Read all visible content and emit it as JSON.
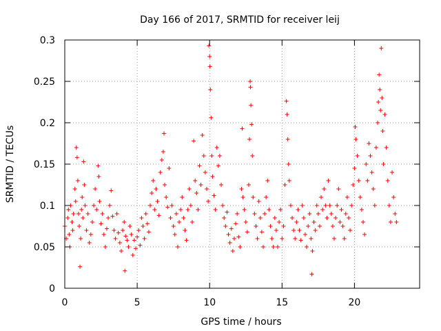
{
  "chart_data": {
    "type": "scatter",
    "title": "Day 166 of 2017, SRMTID for receiver leij",
    "xlabel": "GPS time / hours",
    "ylabel": "SRMTID / TECUs",
    "xlim": [
      0,
      24.5
    ],
    "ylim": [
      0,
      0.3
    ],
    "xticks": [
      0,
      5,
      10,
      15,
      20
    ],
    "xtick_labels": [
      "0",
      "5",
      "10",
      "15",
      "20"
    ],
    "yticks": [
      0,
      0.05,
      0.1,
      0.15,
      0.2,
      0.25,
      0.3
    ],
    "ytick_labels": [
      "0",
      "0.05",
      "0.1",
      "0.15",
      "0.2",
      "0.25",
      "0.3"
    ],
    "grid": true,
    "marker": "+",
    "color": "#ff0000",
    "series": [
      {
        "name": "SRMTID",
        "points": [
          [
            0.0,
            0.075
          ],
          [
            0.1,
            0.06
          ],
          [
            0.2,
            0.085
          ],
          [
            0.25,
            0.095
          ],
          [
            0.3,
            0.065
          ],
          [
            0.35,
            0.05
          ],
          [
            0.4,
            0.1
          ],
          [
            0.5,
            0.08
          ],
          [
            0.55,
            0.07
          ],
          [
            0.6,
            0.09
          ],
          [
            0.7,
            0.12
          ],
          [
            0.75,
            0.105
          ],
          [
            0.8,
            0.17
          ],
          [
            0.85,
            0.158
          ],
          [
            0.9,
            0.13
          ],
          [
            0.95,
            0.09
          ],
          [
            1.0,
            0.075
          ],
          [
            1.05,
            0.026
          ],
          [
            1.1,
            0.06
          ],
          [
            1.15,
            0.095
          ],
          [
            1.2,
            0.11
          ],
          [
            1.25,
            0.085
          ],
          [
            1.3,
            0.153
          ],
          [
            1.35,
            0.125
          ],
          [
            1.4,
            0.1
          ],
          [
            1.5,
            0.07
          ],
          [
            1.6,
            0.09
          ],
          [
            1.7,
            0.055
          ],
          [
            1.8,
            0.065
          ],
          [
            1.9,
            0.08
          ],
          [
            2.0,
            0.1
          ],
          [
            2.1,
            0.12
          ],
          [
            2.2,
            0.095
          ],
          [
            2.3,
            0.148
          ],
          [
            2.35,
            0.135
          ],
          [
            2.4,
            0.105
          ],
          [
            2.5,
            0.078
          ],
          [
            2.6,
            0.09
          ],
          [
            2.7,
            0.065
          ],
          [
            2.8,
            0.05
          ],
          [
            2.9,
            0.072
          ],
          [
            3.0,
            0.085
          ],
          [
            3.1,
            0.1
          ],
          [
            3.2,
            0.118
          ],
          [
            3.3,
            0.087
          ],
          [
            3.4,
            0.07
          ],
          [
            3.5,
            0.06
          ],
          [
            3.6,
            0.09
          ],
          [
            3.7,
            0.067
          ],
          [
            3.8,
            0.055
          ],
          [
            3.9,
            0.045
          ],
          [
            4.0,
            0.07
          ],
          [
            4.1,
            0.08
          ],
          [
            4.15,
            0.021
          ],
          [
            4.2,
            0.063
          ],
          [
            4.3,
            0.058
          ],
          [
            4.4,
            0.05
          ],
          [
            4.5,
            0.075
          ],
          [
            4.6,
            0.065
          ],
          [
            4.7,
            0.04
          ],
          [
            4.8,
            0.058
          ],
          [
            4.9,
            0.048
          ],
          [
            5.0,
            0.062
          ],
          [
            5.1,
            0.07
          ],
          [
            5.2,
            0.052
          ],
          [
            5.3,
            0.085
          ],
          [
            5.4,
            0.075
          ],
          [
            5.5,
            0.06
          ],
          [
            5.6,
            0.09
          ],
          [
            5.7,
            0.078
          ],
          [
            5.8,
            0.068
          ],
          [
            5.9,
            0.1
          ],
          [
            6.0,
            0.115
          ],
          [
            6.1,
            0.13
          ],
          [
            6.2,
            0.095
          ],
          [
            6.3,
            0.12
          ],
          [
            6.4,
            0.105
          ],
          [
            6.5,
            0.088
          ],
          [
            6.6,
            0.14
          ],
          [
            6.7,
            0.155
          ],
          [
            6.8,
            0.165
          ],
          [
            6.85,
            0.187
          ],
          [
            6.9,
            0.125
          ],
          [
            7.0,
            0.11
          ],
          [
            7.1,
            0.098
          ],
          [
            7.2,
            0.145
          ],
          [
            7.3,
            0.085
          ],
          [
            7.4,
            0.1
          ],
          [
            7.5,
            0.075
          ],
          [
            7.6,
            0.065
          ],
          [
            7.7,
            0.09
          ],
          [
            7.8,
            0.05
          ],
          [
            7.9,
            0.08
          ],
          [
            8.0,
            0.095
          ],
          [
            8.1,
            0.11
          ],
          [
            8.2,
            0.085
          ],
          [
            8.3,
            0.07
          ],
          [
            8.4,
            0.058
          ],
          [
            8.5,
            0.095
          ],
          [
            8.6,
            0.12
          ],
          [
            8.7,
            0.1
          ],
          [
            8.8,
            0.08
          ],
          [
            8.9,
            0.178
          ],
          [
            9.0,
            0.13
          ],
          [
            9.1,
            0.115
          ],
          [
            9.2,
            0.095
          ],
          [
            9.3,
            0.148
          ],
          [
            9.4,
            0.125
          ],
          [
            9.5,
            0.185
          ],
          [
            9.6,
            0.16
          ],
          [
            9.7,
            0.14
          ],
          [
            9.8,
            0.12
          ],
          [
            9.9,
            0.105
          ],
          [
            9.95,
            0.293
          ],
          [
            10.0,
            0.28
          ],
          [
            10.02,
            0.268
          ],
          [
            10.05,
            0.24
          ],
          [
            10.1,
            0.206
          ],
          [
            10.15,
            0.16
          ],
          [
            10.2,
            0.135
          ],
          [
            10.3,
            0.112
          ],
          [
            10.4,
            0.095
          ],
          [
            10.5,
            0.17
          ],
          [
            10.6,
            0.148
          ],
          [
            10.7,
            0.16
          ],
          [
            10.8,
            0.125
          ],
          [
            10.9,
            0.1
          ],
          [
            11.0,
            0.085
          ],
          [
            11.1,
            0.075
          ],
          [
            11.2,
            0.092
          ],
          [
            11.3,
            0.065
          ],
          [
            11.4,
            0.055
          ],
          [
            11.5,
            0.072
          ],
          [
            11.6,
            0.045
          ],
          [
            11.7,
            0.06
          ],
          [
            11.8,
            0.078
          ],
          [
            11.9,
            0.09
          ],
          [
            12.0,
            0.062
          ],
          [
            12.1,
            0.05
          ],
          [
            12.2,
            0.12
          ],
          [
            12.25,
            0.193
          ],
          [
            12.3,
            0.11
          ],
          [
            12.4,
            0.095
          ],
          [
            12.5,
            0.08
          ],
          [
            12.6,
            0.068
          ],
          [
            12.7,
            0.125
          ],
          [
            12.75,
            0.18
          ],
          [
            12.8,
            0.25
          ],
          [
            12.82,
            0.243
          ],
          [
            12.85,
            0.221
          ],
          [
            12.9,
            0.198
          ],
          [
            12.95,
            0.16
          ],
          [
            13.0,
            0.11
          ],
          [
            13.1,
            0.09
          ],
          [
            13.2,
            0.075
          ],
          [
            13.3,
            0.06
          ],
          [
            13.4,
            0.105
          ],
          [
            13.5,
            0.085
          ],
          [
            13.6,
            0.068
          ],
          [
            13.7,
            0.05
          ],
          [
            13.8,
            0.09
          ],
          [
            13.9,
            0.11
          ],
          [
            14.0,
            0.13
          ],
          [
            14.1,
            0.095
          ],
          [
            14.2,
            0.075
          ],
          [
            14.3,
            0.06
          ],
          [
            14.4,
            0.05
          ],
          [
            14.5,
            0.085
          ],
          [
            14.6,
            0.07
          ],
          [
            14.7,
            0.05
          ],
          [
            14.8,
            0.08
          ],
          [
            14.9,
            0.095
          ],
          [
            15.0,
            0.06
          ],
          [
            15.1,
            0.075
          ],
          [
            15.2,
            0.125
          ],
          [
            15.3,
            0.226
          ],
          [
            15.35,
            0.21
          ],
          [
            15.4,
            0.18
          ],
          [
            15.45,
            0.15
          ],
          [
            15.5,
            0.13
          ],
          [
            15.6,
            0.1
          ],
          [
            15.7,
            0.085
          ],
          [
            15.8,
            0.07
          ],
          [
            15.9,
            0.06
          ],
          [
            16.0,
            0.08
          ],
          [
            16.1,
            0.095
          ],
          [
            16.2,
            0.07
          ],
          [
            16.3,
            0.058
          ],
          [
            16.4,
            0.1
          ],
          [
            16.5,
            0.085
          ],
          [
            16.6,
            0.065
          ],
          [
            16.7,
            0.05
          ],
          [
            16.8,
            0.075
          ],
          [
            16.9,
            0.09
          ],
          [
            17.0,
            0.06
          ],
          [
            17.05,
            0.017
          ],
          [
            17.1,
            0.045
          ],
          [
            17.2,
            0.08
          ],
          [
            17.3,
            0.07
          ],
          [
            17.4,
            0.1
          ],
          [
            17.5,
            0.09
          ],
          [
            17.6,
            0.075
          ],
          [
            17.7,
            0.11
          ],
          [
            17.8,
            0.095
          ],
          [
            17.9,
            0.12
          ],
          [
            18.0,
            0.1
          ],
          [
            18.1,
            0.085
          ],
          [
            18.2,
            0.13
          ],
          [
            18.3,
            0.1
          ],
          [
            18.4,
            0.09
          ],
          [
            18.5,
            0.075
          ],
          [
            18.6,
            0.06
          ],
          [
            18.7,
            0.085
          ],
          [
            18.8,
            0.1
          ],
          [
            18.9,
            0.12
          ],
          [
            19.0,
            0.08
          ],
          [
            19.1,
            0.095
          ],
          [
            19.2,
            0.075
          ],
          [
            19.3,
            0.06
          ],
          [
            19.4,
            0.09
          ],
          [
            19.5,
            0.11
          ],
          [
            19.6,
            0.085
          ],
          [
            19.7,
            0.07
          ],
          [
            19.8,
            0.1
          ],
          [
            19.9,
            0.125
          ],
          [
            20.0,
            0.145
          ],
          [
            20.05,
            0.195
          ],
          [
            20.1,
            0.18
          ],
          [
            20.2,
            0.16
          ],
          [
            20.3,
            0.13
          ],
          [
            20.4,
            0.11
          ],
          [
            20.5,
            0.095
          ],
          [
            20.6,
            0.08
          ],
          [
            20.7,
            0.065
          ],
          [
            20.8,
            0.15
          ],
          [
            20.9,
            0.13
          ],
          [
            21.0,
            0.175
          ],
          [
            21.1,
            0.16
          ],
          [
            21.2,
            0.14
          ],
          [
            21.3,
            0.12
          ],
          [
            21.4,
            0.1
          ],
          [
            21.5,
            0.17
          ],
          [
            21.6,
            0.2
          ],
          [
            21.65,
            0.225
          ],
          [
            21.7,
            0.258
          ],
          [
            21.75,
            0.24
          ],
          [
            21.8,
            0.215
          ],
          [
            21.85,
            0.29
          ],
          [
            21.9,
            0.23
          ],
          [
            21.95,
            0.19
          ],
          [
            22.0,
            0.15
          ],
          [
            22.1,
            0.21
          ],
          [
            22.2,
            0.17
          ],
          [
            22.3,
            0.13
          ],
          [
            22.4,
            0.1
          ],
          [
            22.5,
            0.08
          ],
          [
            22.6,
            0.14
          ],
          [
            22.7,
            0.11
          ],
          [
            22.8,
            0.09
          ],
          [
            22.9,
            0.08
          ]
        ]
      }
    ]
  }
}
